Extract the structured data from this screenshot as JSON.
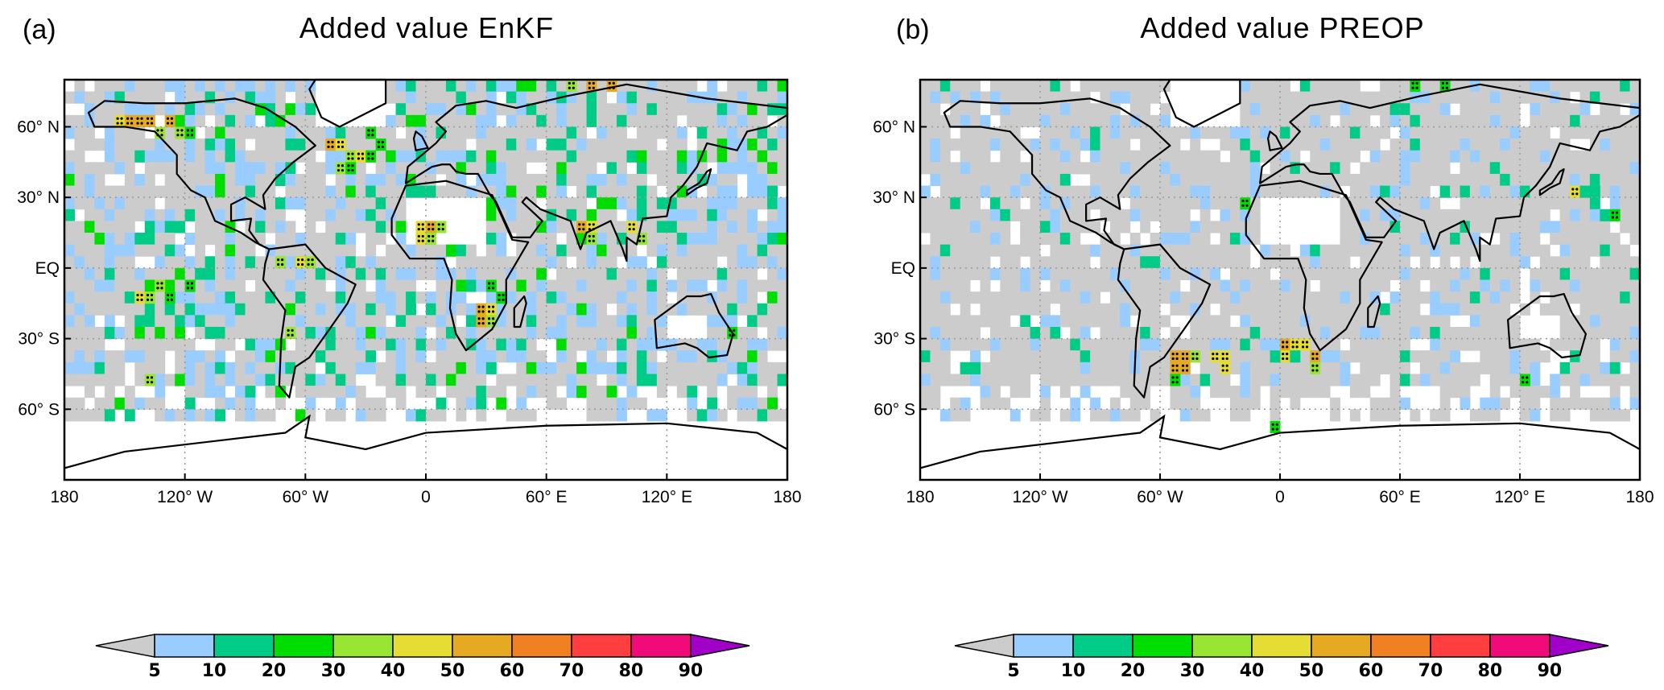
{
  "panels": [
    {
      "label": "(a)",
      "title": "Added value EnKF",
      "highlight_cells": [
        {
          "lon": -155,
          "lat": 60,
          "c": 5
        },
        {
          "lon": -150,
          "lat": 60,
          "c": 6
        },
        {
          "lon": -145,
          "lat": 60,
          "c": 6
        },
        {
          "lon": -140,
          "lat": 60,
          "c": 6
        },
        {
          "lon": -130,
          "lat": 60,
          "c": 6
        },
        {
          "lon": -125,
          "lat": 55,
          "c": 4
        },
        {
          "lon": -120,
          "lat": 55,
          "c": 3
        },
        {
          "lon": -135,
          "lat": 55,
          "c": 4
        },
        {
          "lon": -50,
          "lat": 50,
          "c": 6
        },
        {
          "lon": -45,
          "lat": 50,
          "c": 5
        },
        {
          "lon": -40,
          "lat": 45,
          "c": 4
        },
        {
          "lon": -35,
          "lat": 45,
          "c": 5
        },
        {
          "lon": -30,
          "lat": 45,
          "c": 3
        },
        {
          "lon": -45,
          "lat": 40,
          "c": 4
        },
        {
          "lon": -40,
          "lat": 40,
          "c": 3
        },
        {
          "lon": -25,
          "lat": 50,
          "c": 3
        },
        {
          "lon": -30,
          "lat": 55,
          "c": 3
        },
        {
          "lon": -5,
          "lat": 15,
          "c": 5
        },
        {
          "lon": 0,
          "lat": 15,
          "c": 6
        },
        {
          "lon": 5,
          "lat": 15,
          "c": 4
        },
        {
          "lon": -5,
          "lat": 10,
          "c": 5
        },
        {
          "lon": 0,
          "lat": 10,
          "c": 4
        },
        {
          "lon": 25,
          "lat": -20,
          "c": 6
        },
        {
          "lon": 30,
          "lat": -20,
          "c": 5
        },
        {
          "lon": 25,
          "lat": -25,
          "c": 6
        },
        {
          "lon": 30,
          "lat": -25,
          "c": 4
        },
        {
          "lon": 35,
          "lat": -15,
          "c": 3
        },
        {
          "lon": 30,
          "lat": -10,
          "c": 3
        },
        {
          "lon": 75,
          "lat": 15,
          "c": 6
        },
        {
          "lon": 80,
          "lat": 15,
          "c": 5
        },
        {
          "lon": 80,
          "lat": 10,
          "c": 4
        },
        {
          "lon": 100,
          "lat": 15,
          "c": 5
        },
        {
          "lon": 105,
          "lat": 10,
          "c": 4
        },
        {
          "lon": -145,
          "lat": -15,
          "c": 5
        },
        {
          "lon": -140,
          "lat": -15,
          "c": 4
        },
        {
          "lon": -135,
          "lat": -10,
          "c": 4
        },
        {
          "lon": -130,
          "lat": -15,
          "c": 3
        },
        {
          "lon": -120,
          "lat": -10,
          "c": 3
        },
        {
          "lon": -75,
          "lat": 0,
          "c": 4
        },
        {
          "lon": -65,
          "lat": 0,
          "c": 5
        },
        {
          "lon": -60,
          "lat": 0,
          "c": 4
        },
        {
          "lon": -70,
          "lat": -30,
          "c": 4
        },
        {
          "lon": 70,
          "lat": 75,
          "c": 4
        },
        {
          "lon": 80,
          "lat": 75,
          "c": 6
        },
        {
          "lon": 90,
          "lat": 75,
          "c": 6
        },
        {
          "lon": 150,
          "lat": -30,
          "c": 3
        },
        {
          "lon": -140,
          "lat": -50,
          "c": 4
        }
      ]
    },
    {
      "label": "(b)",
      "title": "Added value PREOP",
      "highlight_cells": [
        {
          "lon": -55,
          "lat": -40,
          "c": 6
        },
        {
          "lon": -50,
          "lat": -40,
          "c": 6
        },
        {
          "lon": -45,
          "lat": -40,
          "c": 4
        },
        {
          "lon": -35,
          "lat": -40,
          "c": 5
        },
        {
          "lon": -30,
          "lat": -40,
          "c": 5
        },
        {
          "lon": -55,
          "lat": -45,
          "c": 6
        },
        {
          "lon": -50,
          "lat": -45,
          "c": 6
        },
        {
          "lon": -30,
          "lat": -45,
          "c": 5
        },
        {
          "lon": 0,
          "lat": -35,
          "c": 6
        },
        {
          "lon": 5,
          "lat": -35,
          "c": 5
        },
        {
          "lon": 10,
          "lat": -35,
          "c": 5
        },
        {
          "lon": 0,
          "lat": -40,
          "c": 5
        },
        {
          "lon": 15,
          "lat": -40,
          "c": 6
        },
        {
          "lon": 15,
          "lat": -45,
          "c": 4
        },
        {
          "lon": -5,
          "lat": -40,
          "c": 2
        },
        {
          "lon": 5,
          "lat": -40,
          "c": 2
        },
        {
          "lon": 145,
          "lat": 30,
          "c": 5
        },
        {
          "lon": 150,
          "lat": 30,
          "c": 2
        },
        {
          "lon": 155,
          "lat": 30,
          "c": 2
        },
        {
          "lon": 160,
          "lat": 20,
          "c": 2
        },
        {
          "lon": 165,
          "lat": 20,
          "c": 3
        },
        {
          "lon": -155,
          "lat": -45,
          "c": 2
        },
        {
          "lon": -160,
          "lat": -45,
          "c": 2
        },
        {
          "lon": -5,
          "lat": -70,
          "c": 3
        },
        {
          "lon": 120,
          "lat": -50,
          "c": 3
        },
        {
          "lon": -55,
          "lat": -50,
          "c": 3
        },
        {
          "lon": -20,
          "lat": 25,
          "c": 3
        },
        {
          "lon": 65,
          "lat": 75,
          "c": 3
        },
        {
          "lon": 80,
          "lat": 75,
          "c": 3
        }
      ]
    }
  ],
  "axes": {
    "lon_ticks": [
      "180",
      "120° W",
      "60° W",
      "0",
      "60° E",
      "120° E",
      "180"
    ],
    "lat_ticks": [
      "60° N",
      "30° N",
      "EQ",
      "30° S",
      "60° S"
    ]
  },
  "colorbar": {
    "labels": [
      "5",
      "10",
      "20",
      "30",
      "40",
      "50",
      "60",
      "70",
      "80",
      "90"
    ],
    "colors": [
      "#cccccc",
      "#99ccff",
      "#00cc88",
      "#00dd00",
      "#99e533",
      "#e5dd33",
      "#e5aa22",
      "#f08022",
      "#ff3f3f",
      "#f00a7a",
      "#a000c8"
    ]
  }
}
